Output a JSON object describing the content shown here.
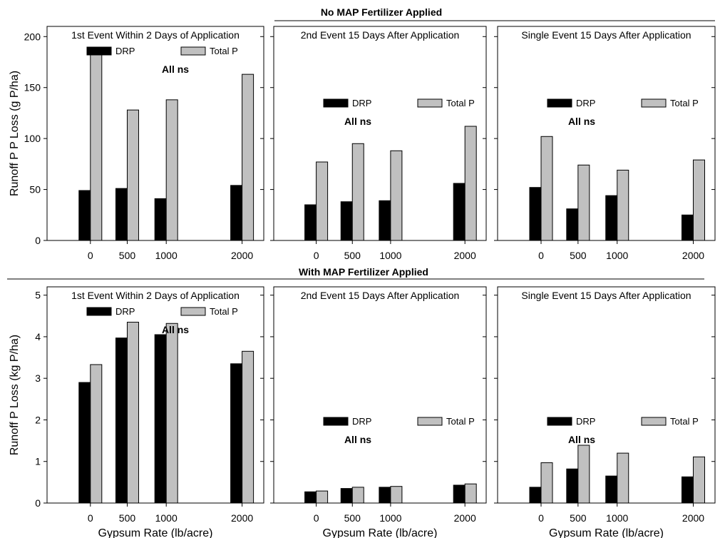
{
  "figure": {
    "top_title": "No MAP Fertilizer Applied",
    "bottom_title": "With MAP Fertilizer Applied",
    "top_ylabel": "Runoff P P Loss (g P/ha)",
    "bottom_ylabel": "Runoff P Loss (kg P/ha)",
    "xlabel": "Gypsum Rate (lb/acre)"
  },
  "chart_data": [
    {
      "type": "bar",
      "row": "No MAP Fertilizer Applied",
      "title": "1st Event Within 2 Days of Application",
      "categories": [
        "0",
        "500",
        "1000",
        "2000"
      ],
      "x": [
        0,
        500,
        1000,
        2000
      ],
      "ylabel": "Runoff P P Loss (g P/ha)",
      "xlabel": "",
      "ylim": [
        0,
        210
      ],
      "yticks": [
        0,
        50,
        100,
        150,
        200
      ],
      "legend_placement": "top",
      "annotation": "All ns",
      "series": [
        {
          "name": "DRP",
          "color": "#000000",
          "values": [
            49,
            51,
            41,
            54
          ]
        },
        {
          "name": "Total P",
          "color": "#c0c0c0",
          "values": [
            184,
            128,
            138,
            163
          ]
        }
      ]
    },
    {
      "type": "bar",
      "row": "No MAP Fertilizer Applied",
      "title": "2nd Event 15 Days After Application",
      "categories": [
        "0",
        "500",
        "1000",
        "2000"
      ],
      "x": [
        0,
        500,
        1000,
        2000
      ],
      "ylabel": "",
      "xlabel": "",
      "ylim": [
        0,
        210
      ],
      "yticks": [
        0,
        50,
        100,
        150,
        200
      ],
      "legend_placement": "center",
      "annotation": "All ns",
      "series": [
        {
          "name": "DRP",
          "color": "#000000",
          "values": [
            35,
            38,
            39,
            56
          ]
        },
        {
          "name": "Total P",
          "color": "#c0c0c0",
          "values": [
            77,
            95,
            88,
            112
          ]
        }
      ]
    },
    {
      "type": "bar",
      "row": "No MAP Fertilizer Applied",
      "title": "Single Event 15 Days After Application",
      "categories": [
        "0",
        "500",
        "1000",
        "2000"
      ],
      "x": [
        0,
        500,
        1000,
        2000
      ],
      "ylabel": "",
      "xlabel": "",
      "ylim": [
        0,
        210
      ],
      "yticks": [
        0,
        50,
        100,
        150,
        200
      ],
      "legend_placement": "center",
      "annotation": "All ns",
      "series": [
        {
          "name": "DRP",
          "color": "#000000",
          "values": [
            52,
            31,
            44,
            25
          ]
        },
        {
          "name": "Total P",
          "color": "#c0c0c0",
          "values": [
            102,
            74,
            69,
            79
          ]
        }
      ]
    },
    {
      "type": "bar",
      "row": "With MAP Fertilizer Applied",
      "title": "1st Event Within 2 Days of Application",
      "categories": [
        "0",
        "500",
        "1000",
        "2000"
      ],
      "x": [
        0,
        500,
        1000,
        2000
      ],
      "ylabel": "Runoff P Loss (kg P/ha)",
      "xlabel": "Gypsum Rate (lb/acre)",
      "ylim": [
        0,
        5.2
      ],
      "yticks": [
        0,
        1,
        2,
        3,
        4,
        5
      ],
      "legend_placement": "top",
      "annotation": "All ns",
      "series": [
        {
          "name": "DRP",
          "color": "#000000",
          "values": [
            2.9,
            3.97,
            4.05,
            3.35
          ]
        },
        {
          "name": "Total P",
          "color": "#c0c0c0",
          "values": [
            3.33,
            4.35,
            4.32,
            3.65
          ]
        }
      ]
    },
    {
      "type": "bar",
      "row": "With MAP Fertilizer Applied",
      "title": "2nd Event 15 Days After Application",
      "categories": [
        "0",
        "500",
        "1000",
        "2000"
      ],
      "x": [
        0,
        500,
        1000,
        2000
      ],
      "ylabel": "",
      "xlabel": "Gypsum Rate (lb/acre)",
      "ylim": [
        0,
        5.2
      ],
      "yticks": [
        0,
        1,
        2,
        3,
        4,
        5
      ],
      "legend_placement": "center",
      "annotation": "All ns",
      "series": [
        {
          "name": "DRP",
          "color": "#000000",
          "values": [
            0.27,
            0.35,
            0.38,
            0.43
          ]
        },
        {
          "name": "Total P",
          "color": "#c0c0c0",
          "values": [
            0.29,
            0.38,
            0.4,
            0.46
          ]
        }
      ]
    },
    {
      "type": "bar",
      "row": "With MAP Fertilizer Applied",
      "title": "Single Event 15 Days After Application",
      "categories": [
        "0",
        "500",
        "1000",
        "2000"
      ],
      "x": [
        0,
        500,
        1000,
        2000
      ],
      "ylabel": "",
      "xlabel": "Gypsum Rate (lb/acre)",
      "ylim": [
        0,
        5.2
      ],
      "yticks": [
        0,
        1,
        2,
        3,
        4,
        5
      ],
      "legend_placement": "center",
      "annotation": "All ns",
      "series": [
        {
          "name": "DRP",
          "color": "#000000",
          "values": [
            0.38,
            0.82,
            0.65,
            0.63
          ]
        },
        {
          "name": "Total P",
          "color": "#c0c0c0",
          "values": [
            0.97,
            1.39,
            1.2,
            1.11
          ]
        }
      ]
    }
  ]
}
